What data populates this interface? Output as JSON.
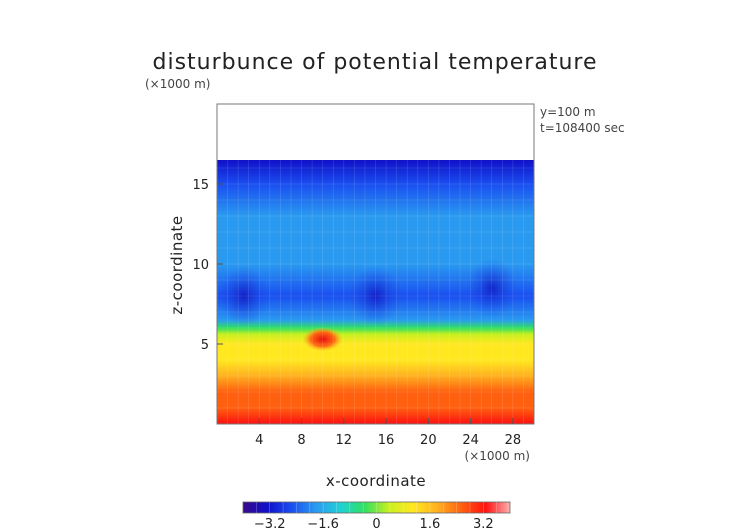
{
  "chart_data": {
    "type": "heatmap",
    "title": "disturbunce of potential temperature",
    "xlabel": "x-coordinate",
    "ylabel": "z-coordinate",
    "x_unit": "(×1000 m)",
    "y_unit": "(×1000 m)",
    "annotations": [
      "y=100 m",
      "t=108400 sec"
    ],
    "xlim": [
      0,
      30
    ],
    "ylim": [
      0,
      20
    ],
    "x_ticks": [
      4,
      8,
      12,
      16,
      20,
      24,
      28
    ],
    "y_ticks": [
      5,
      10,
      15
    ],
    "colorbar": {
      "range": [
        -4.0,
        4.0
      ],
      "ticks": [
        -3.2,
        -1.6,
        0,
        1.6,
        3.2
      ],
      "tick_labels": [
        "−3.2",
        "−1.6",
        "0",
        "1.6",
        "3.2"
      ],
      "levels": 20
    },
    "colormap": [
      "#3a0a8a",
      "#1010c8",
      "#1a4ef0",
      "#2a9af0",
      "#20d0d8",
      "#30e060",
      "#c8f020",
      "#ffe820",
      "#ffb020",
      "#ff6010",
      "#ff1010",
      "#ffb0b0"
    ],
    "domain_top_km": 16.5,
    "field_profile": [
      {
        "z": 0.0,
        "value": 3.4
      },
      {
        "z": 1.0,
        "value": 2.9
      },
      {
        "z": 2.0,
        "value": 2.2
      },
      {
        "z": 3.0,
        "value": 1.7
      },
      {
        "z": 4.0,
        "value": 1.3
      },
      {
        "z": 5.0,
        "value": 0.9
      },
      {
        "z": 5.6,
        "value": 0.2
      },
      {
        "z": 6.0,
        "value": -0.6
      },
      {
        "z": 6.5,
        "value": -1.5
      },
      {
        "z": 8.0,
        "value": -2.2
      },
      {
        "z": 10.0,
        "value": -2.0
      },
      {
        "z": 13.0,
        "value": -2.1
      },
      {
        "z": 15.0,
        "value": -2.5
      },
      {
        "z": 16.5,
        "value": -3.0
      }
    ],
    "features": [
      {
        "name": "warm-bubble",
        "x": 10.0,
        "z": 5.3,
        "value": 3.3
      },
      {
        "name": "cold-pool-left",
        "x": 2.5,
        "z": 8.0,
        "value": -3.1
      },
      {
        "name": "cold-pool-center",
        "x": 15.0,
        "z": 8.0,
        "value": -3.0
      },
      {
        "name": "cold-pool-right",
        "x": 26.0,
        "z": 8.5,
        "value": -2.8
      }
    ]
  }
}
